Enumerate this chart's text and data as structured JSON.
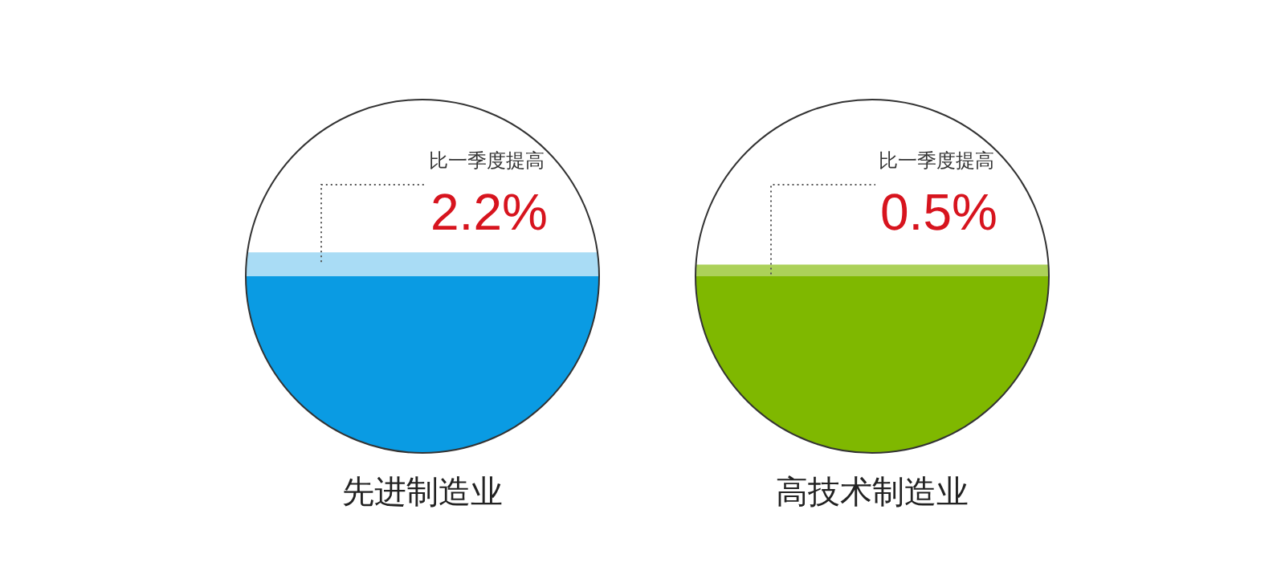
{
  "chart_data": [
    {
      "type": "other",
      "title": "先进制造业",
      "annotations": [
        "比一季度提高"
      ],
      "values": [
        2.2
      ],
      "value_labels": [
        "2.2%"
      ],
      "color": "#0a9be3"
    },
    {
      "type": "other",
      "title": "高技术制造业",
      "annotations": [
        "比一季度提高"
      ],
      "values": [
        0.5
      ],
      "value_labels": [
        "0.5%"
      ],
      "color": "#7fb800"
    }
  ]
}
